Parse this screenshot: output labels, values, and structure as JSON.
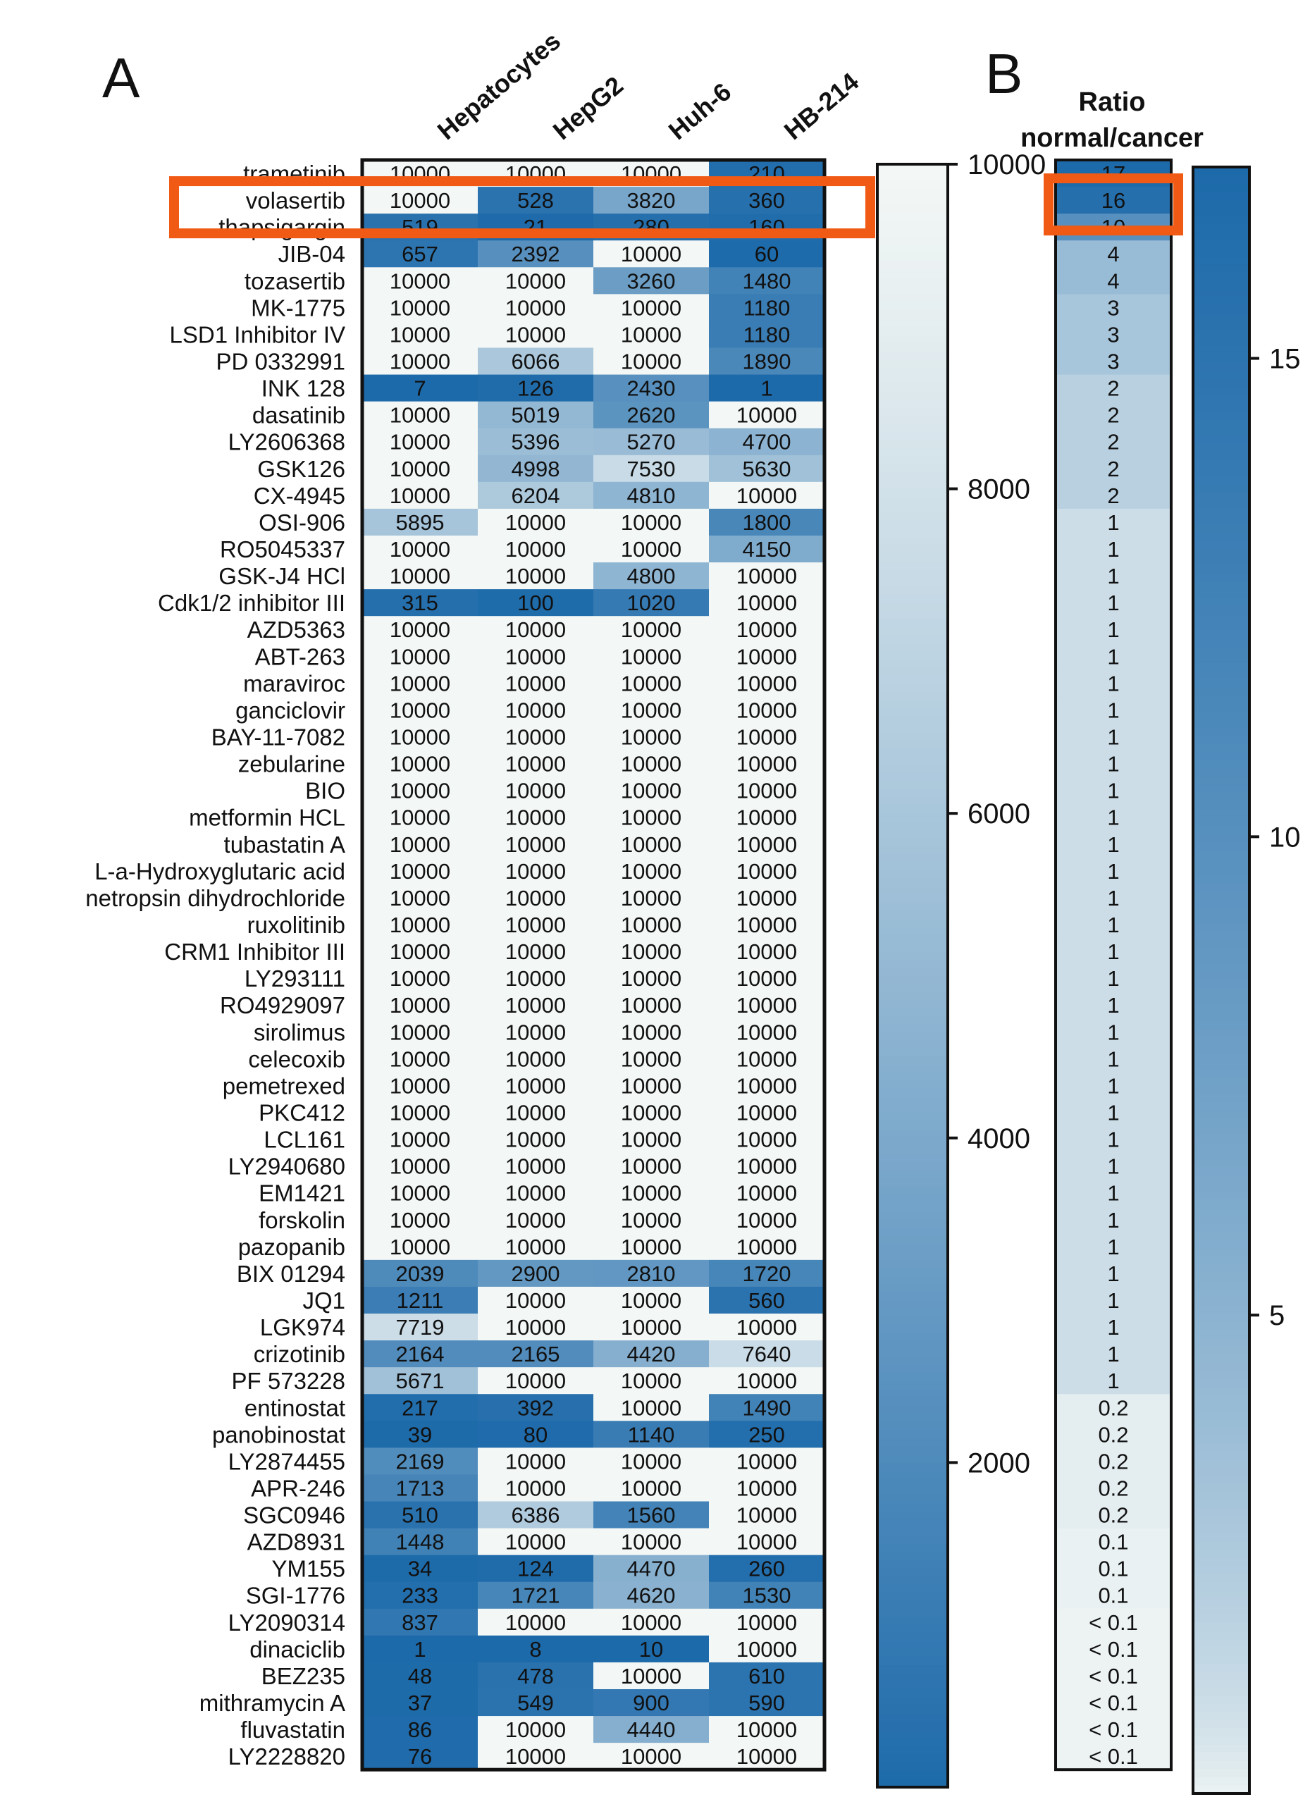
{
  "panels": {
    "a": "A",
    "b": "B"
  },
  "colors": {
    "low": "#f3f7f5",
    "high": "#1d6aaa",
    "highlight": "#f05a14",
    "frame": "#111111"
  },
  "chart_data": [
    {
      "type": "heatmap",
      "title": "",
      "columns": [
        "Hepatocytes",
        "HepG2",
        "Huh-6",
        "HB-214"
      ],
      "rows": [
        "trametinib",
        "volasertib",
        "thapsigargin",
        "JIB-04",
        "tozasertib",
        "MK-1775",
        "LSD1 Inhibitor IV",
        "PD 0332991",
        "INK 128",
        "dasatinib",
        "LY2606368",
        "GSK126",
        "CX-4945",
        "OSI-906",
        "RO5045337",
        "GSK-J4 HCl",
        "Cdk1/2 inhibitor III",
        "AZD5363",
        "ABT-263",
        "maraviroc",
        "ganciclovir",
        "BAY-11-7082",
        "zebularine",
        "BIO",
        "metformin HCL",
        "tubastatin A",
        "L-a-Hydroxyglutaric acid",
        "netropsin dihydrochloride",
        "ruxolitinib",
        "CRM1 Inhibitor III",
        "LY293111",
        "RO4929097",
        "sirolimus",
        "celecoxib",
        "pemetrexed",
        "PKC412",
        "LCL161",
        "LY2940680",
        "EM1421",
        "forskolin",
        "pazopanib",
        "BIX 01294",
        "JQ1",
        "LGK974",
        "crizotinib",
        "PF 573228",
        "entinostat",
        "panobinostat",
        "LY2874455",
        "APR-246",
        "SGC0946",
        "AZD8931",
        "YM155",
        "SGI-1776",
        "LY2090314",
        "dinaciclib",
        "BEZ235",
        "mithramycin A",
        "fluvastatin",
        "LY2228820"
      ],
      "values": [
        [
          10000,
          10000,
          10000,
          210
        ],
        [
          10000,
          528,
          3820,
          360
        ],
        [
          519,
          21,
          280,
          160
        ],
        [
          657,
          2392,
          10000,
          60
        ],
        [
          10000,
          10000,
          3260,
          1480
        ],
        [
          10000,
          10000,
          10000,
          1180
        ],
        [
          10000,
          10000,
          10000,
          1180
        ],
        [
          10000,
          6066,
          10000,
          1890
        ],
        [
          7,
          126,
          2430,
          1
        ],
        [
          10000,
          5019,
          2620,
          10000
        ],
        [
          10000,
          5396,
          5270,
          4700
        ],
        [
          10000,
          4998,
          7530,
          5630
        ],
        [
          10000,
          6204,
          4810,
          10000
        ],
        [
          5895,
          10000,
          10000,
          1800
        ],
        [
          10000,
          10000,
          10000,
          4150
        ],
        [
          10000,
          10000,
          4800,
          10000
        ],
        [
          315,
          100,
          1020,
          10000
        ],
        [
          10000,
          10000,
          10000,
          10000
        ],
        [
          10000,
          10000,
          10000,
          10000
        ],
        [
          10000,
          10000,
          10000,
          10000
        ],
        [
          10000,
          10000,
          10000,
          10000
        ],
        [
          10000,
          10000,
          10000,
          10000
        ],
        [
          10000,
          10000,
          10000,
          10000
        ],
        [
          10000,
          10000,
          10000,
          10000
        ],
        [
          10000,
          10000,
          10000,
          10000
        ],
        [
          10000,
          10000,
          10000,
          10000
        ],
        [
          10000,
          10000,
          10000,
          10000
        ],
        [
          10000,
          10000,
          10000,
          10000
        ],
        [
          10000,
          10000,
          10000,
          10000
        ],
        [
          10000,
          10000,
          10000,
          10000
        ],
        [
          10000,
          10000,
          10000,
          10000
        ],
        [
          10000,
          10000,
          10000,
          10000
        ],
        [
          10000,
          10000,
          10000,
          10000
        ],
        [
          10000,
          10000,
          10000,
          10000
        ],
        [
          10000,
          10000,
          10000,
          10000
        ],
        [
          10000,
          10000,
          10000,
          10000
        ],
        [
          10000,
          10000,
          10000,
          10000
        ],
        [
          10000,
          10000,
          10000,
          10000
        ],
        [
          10000,
          10000,
          10000,
          10000
        ],
        [
          10000,
          10000,
          10000,
          10000
        ],
        [
          10000,
          10000,
          10000,
          10000
        ],
        [
          2039,
          2900,
          2810,
          1720
        ],
        [
          1211,
          10000,
          10000,
          560
        ],
        [
          7719,
          10000,
          10000,
          10000
        ],
        [
          2164,
          2165,
          4420,
          7640
        ],
        [
          5671,
          10000,
          10000,
          10000
        ],
        [
          217,
          392,
          10000,
          1490
        ],
        [
          39,
          80,
          1140,
          250
        ],
        [
          2169,
          10000,
          10000,
          10000
        ],
        [
          1713,
          10000,
          10000,
          10000
        ],
        [
          510,
          6386,
          1560,
          10000
        ],
        [
          1448,
          10000,
          10000,
          10000
        ],
        [
          34,
          124,
          4470,
          260
        ],
        [
          233,
          1721,
          4620,
          1530
        ],
        [
          837,
          10000,
          10000,
          10000
        ],
        [
          1,
          8,
          10,
          10000
        ],
        [
          48,
          478,
          10000,
          610
        ],
        [
          37,
          549,
          900,
          590
        ],
        [
          86,
          10000,
          4440,
          10000
        ],
        [
          76,
          10000,
          10000,
          10000
        ]
      ],
      "colorbar": {
        "min": 0,
        "max": 10000,
        "ticks": [
          2000,
          4000,
          6000,
          8000,
          10000
        ],
        "low_is_dark": true
      },
      "highlighted_row": "volasertib"
    },
    {
      "type": "heatmap",
      "title": "Ratio normal/cancer",
      "title_lines": [
        "Ratio",
        "normal/cancer"
      ],
      "rows_match_panel": "A",
      "values": [
        "17",
        "16",
        "10",
        "4",
        "4",
        "3",
        "3",
        "3",
        "2",
        "2",
        "2",
        "2",
        "2",
        "1",
        "1",
        "1",
        "1",
        "1",
        "1",
        "1",
        "1",
        "1",
        "1",
        "1",
        "1",
        "1",
        "1",
        "1",
        "1",
        "1",
        "1",
        "1",
        "1",
        "1",
        "1",
        "1",
        "1",
        "1",
        "1",
        "1",
        "1",
        "1",
        "1",
        "1",
        "1",
        "1",
        "0.2",
        "0.2",
        "0.2",
        "0.2",
        "0.2",
        "0.1",
        "0.1",
        "0.1",
        "< 0.1",
        "< 0.1",
        "< 0.1",
        "< 0.1",
        "< 0.1",
        "< 0.1"
      ],
      "numeric_values": [
        17,
        16,
        10,
        4,
        4,
        3,
        3,
        3,
        2,
        2,
        2,
        2,
        2,
        1,
        1,
        1,
        1,
        1,
        1,
        1,
        1,
        1,
        1,
        1,
        1,
        1,
        1,
        1,
        1,
        1,
        1,
        1,
        1,
        1,
        1,
        1,
        1,
        1,
        1,
        1,
        1,
        1,
        1,
        1,
        1,
        1,
        0.2,
        0.2,
        0.2,
        0.2,
        0.2,
        0.1,
        0.1,
        0.1,
        0.05,
        0.05,
        0.05,
        0.05,
        0.05,
        0.05
      ],
      "colorbar": {
        "min": 0,
        "max": 17,
        "ticks": [
          5,
          10,
          15
        ],
        "low_is_dark": false
      },
      "highlighted_row_index": 1
    }
  ]
}
